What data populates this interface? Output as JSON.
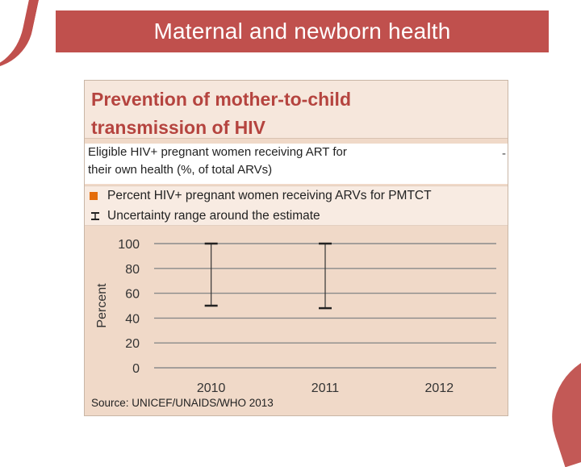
{
  "banner": {
    "title": "Maternal and newborn health"
  },
  "panel": {
    "title_line1": "Prevention of mother-to-child",
    "title_line2": "transmission of HIV",
    "sub_line1": "Eligible HIV+ pregnant women receiving ART for",
    "sub_line2": "their own health (%, of total ARVs)",
    "sub_value": "-",
    "source": "Source: UNICEF/UNAIDS/WHO 2013"
  },
  "colors": {
    "accent": "#c0504d",
    "bar": "#e46c0a",
    "panel_bg": "#f0d9c8"
  },
  "chart_data": {
    "type": "bar",
    "categories": [
      "2010",
      "2011",
      "2012"
    ],
    "series": [
      {
        "name": "Percent HIV+ pregnant women receiving ARVs for PMTCT",
        "values": [
          null,
          null,
          null
        ]
      }
    ],
    "uncertainty": {
      "name": "Uncertainty range around the estimate",
      "low": [
        50,
        48,
        null
      ],
      "high": [
        100,
        100,
        null
      ]
    },
    "ylabel": "Percent",
    "yticks": [
      0,
      20,
      40,
      60,
      80,
      100
    ],
    "ylim": [
      0,
      100
    ],
    "grid": true,
    "legend": "top"
  }
}
